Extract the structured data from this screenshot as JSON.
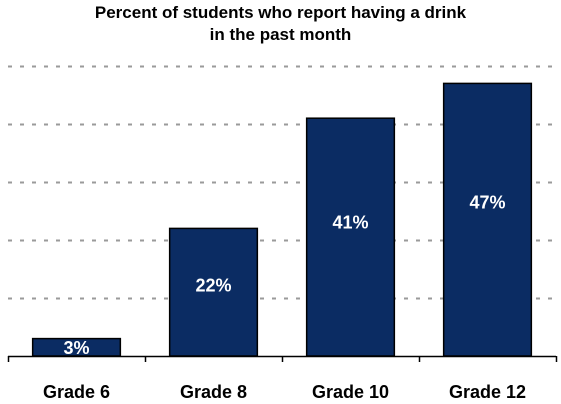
{
  "chart_data": {
    "type": "bar",
    "title_lines": [
      "Percent of students who report having a drink",
      "in the past month"
    ],
    "categories": [
      "Grade 6",
      "Grade 8",
      "Grade 10",
      "Grade 12"
    ],
    "values": [
      3,
      22,
      41,
      47
    ],
    "value_labels": [
      "3%",
      "22%",
      "41%",
      "47%"
    ],
    "ylim": [
      0,
      50
    ],
    "yticks": [
      0,
      10,
      20,
      30,
      40,
      50
    ],
    "grid": true,
    "legend": "none"
  },
  "colors": {
    "bar": "#0b2c63",
    "bar_edge": "#000000",
    "grid": "#9a9a9a",
    "value_label": "#ffffff"
  }
}
